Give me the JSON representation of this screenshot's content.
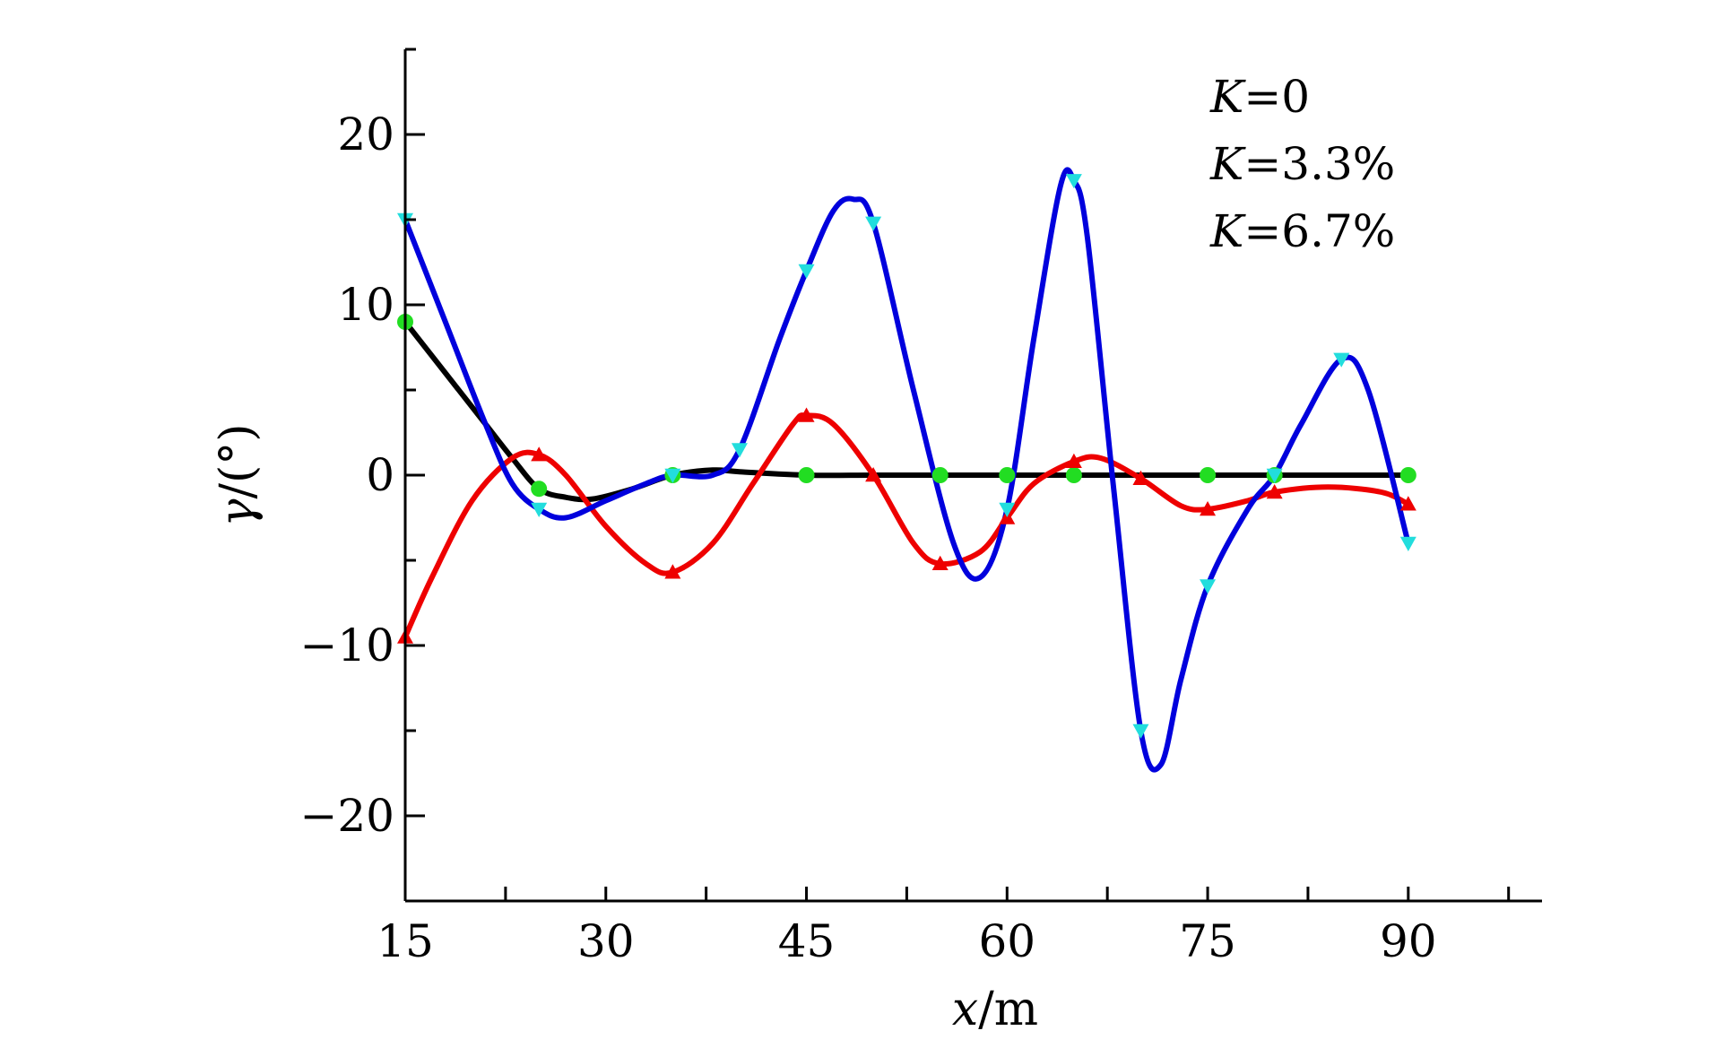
{
  "chart_data": {
    "type": "line",
    "title": "",
    "xlabel": {
      "var": "x",
      "unit": "/m"
    },
    "ylabel": {
      "var": "γ",
      "unit": "/(°)"
    },
    "xlim": [
      15,
      100
    ],
    "ylim": [
      -25,
      25
    ],
    "x_ticks": [
      15,
      30,
      45,
      60,
      75,
      90
    ],
    "y_ticks": [
      -20,
      -10,
      0,
      10,
      20
    ],
    "grid": false,
    "legend_position": "top-right",
    "series": [
      {
        "name": "K=0",
        "name_parts": {
          "var": "K",
          "rest": "=0"
        },
        "color": "#000000",
        "marker_color": "#22dd22",
        "marker": "circle",
        "markers_x": [
          15,
          25,
          35,
          45,
          55,
          60,
          65,
          75,
          80,
          90
        ],
        "x": [
          15,
          18,
          21,
          23,
          25,
          27,
          29,
          32,
          35,
          38,
          40,
          45,
          50,
          55,
          60,
          65,
          70,
          75,
          80,
          85,
          90
        ],
        "y": [
          9,
          6,
          3,
          1,
          -0.8,
          -1.3,
          -1.4,
          -0.8,
          0,
          0.3,
          0.2,
          0,
          0,
          0,
          0,
          0,
          0,
          0,
          0,
          0,
          0
        ]
      },
      {
        "name": "K=3.3%",
        "name_parts": {
          "var": "K",
          "rest": "=3.3%"
        },
        "color": "#ee0000",
        "marker_color": "#ee0000",
        "marker": "triangle-up",
        "markers_x": [
          15,
          25,
          35,
          45,
          50,
          55,
          60,
          65,
          70,
          75,
          80,
          90
        ],
        "x": [
          15,
          17,
          20,
          23,
          25,
          27,
          30,
          33,
          35,
          38,
          41,
          44,
          45,
          47,
          50,
          53,
          55,
          58,
          60,
          62,
          65,
          67,
          70,
          73,
          75,
          78,
          80,
          84,
          88,
          90
        ],
        "y": [
          -9.5,
          -6,
          -1.5,
          1,
          1.2,
          0,
          -3,
          -5.2,
          -5.7,
          -4,
          -0.5,
          3,
          3.5,
          3,
          0,
          -4,
          -5.2,
          -4.5,
          -2.5,
          -0.5,
          0.8,
          1,
          -0.2,
          -1.8,
          -2,
          -1.5,
          -1,
          -0.7,
          -1,
          -1.7
        ]
      },
      {
        "name": "K=6.7%",
        "name_parts": {
          "var": "K",
          "rest": "=6.7%"
        },
        "color": "#0000dd",
        "marker_color": "#22dddd",
        "marker": "triangle-down",
        "markers_x": [
          15,
          25,
          35,
          40,
          45,
          50,
          60,
          65,
          70,
          75,
          80,
          85,
          90
        ],
        "x": [
          15,
          18,
          21,
          23,
          25,
          27,
          30,
          33,
          35,
          38,
          40,
          43,
          45,
          47,
          48.5,
          50,
          53,
          56,
          58,
          60,
          62,
          64,
          65,
          66,
          68,
          70,
          71.5,
          73,
          75,
          78,
          80,
          82,
          85,
          87,
          90
        ],
        "y": [
          15,
          9,
          3,
          -0.5,
          -2,
          -2.5,
          -1.5,
          -0.5,
          0,
          0,
          1.5,
          8,
          12,
          15.5,
          16.2,
          14.8,
          5,
          -4,
          -6,
          -2,
          8,
          17,
          17.3,
          14,
          -1,
          -15,
          -17,
          -12,
          -6.5,
          -2,
          0,
          3,
          6.8,
          5,
          -4
        ]
      }
    ]
  }
}
